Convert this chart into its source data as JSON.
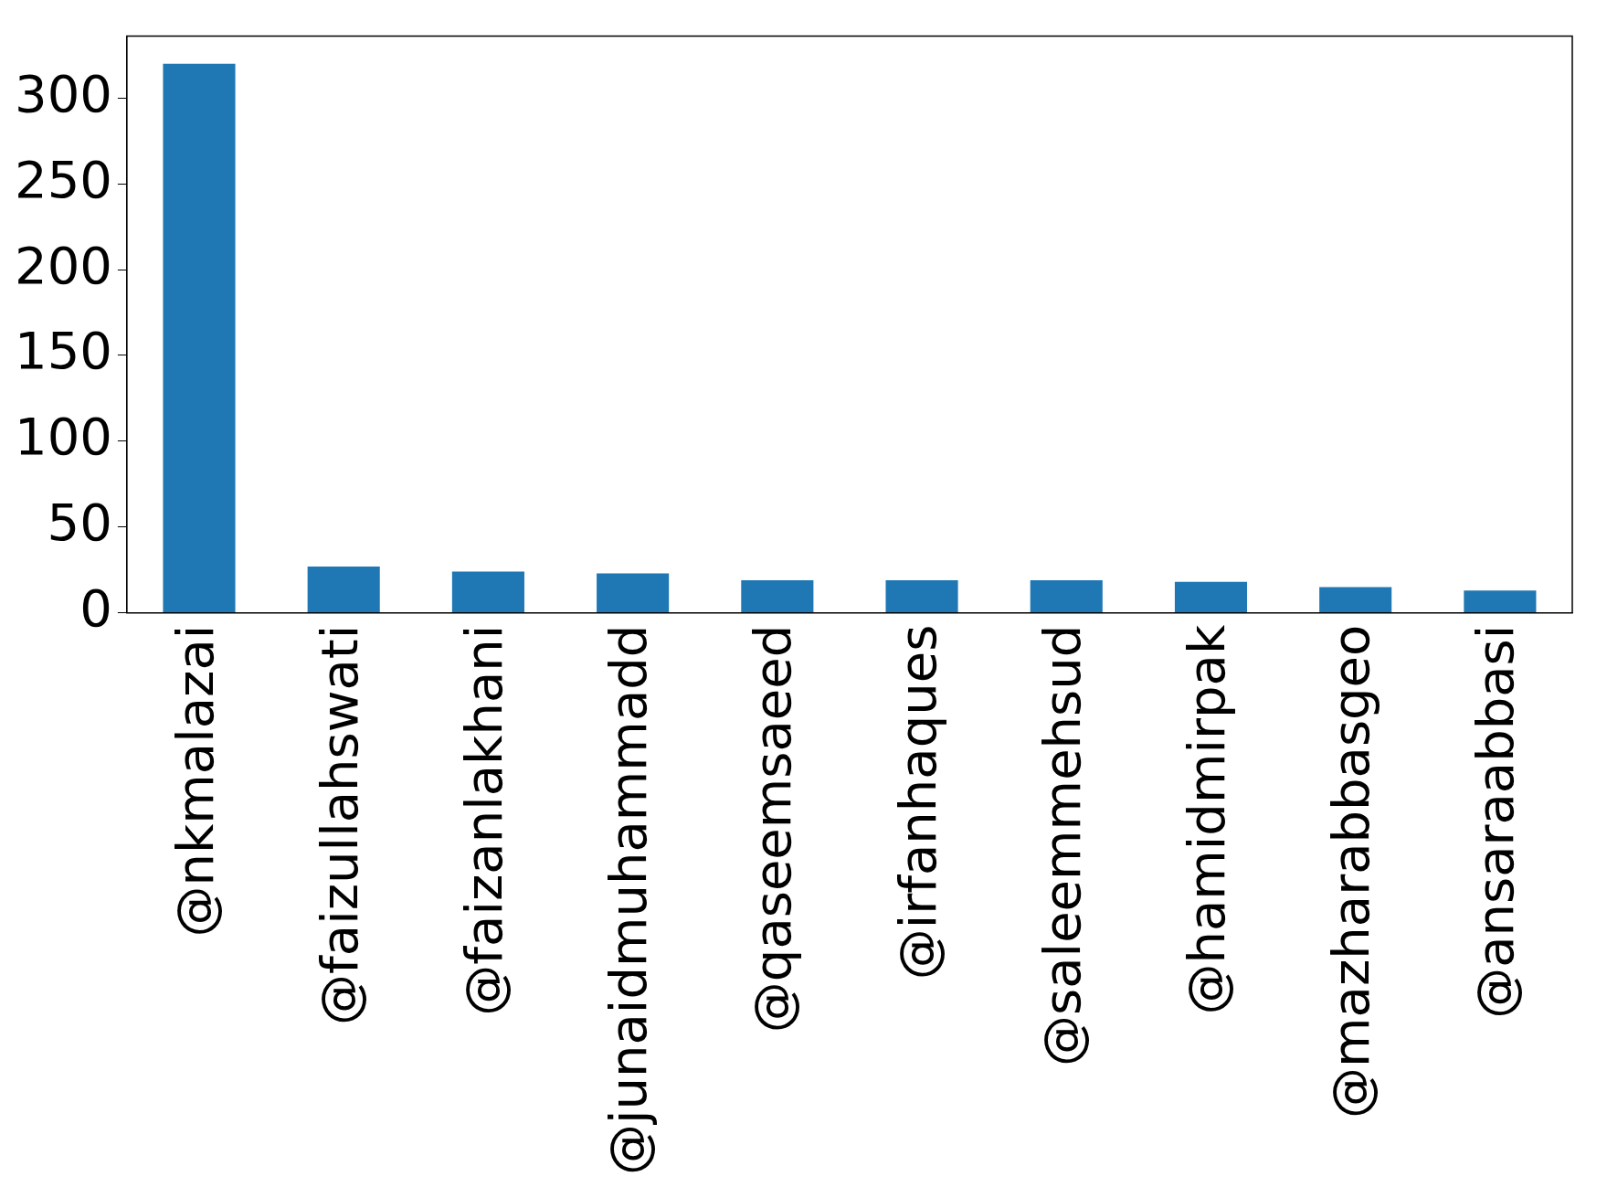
{
  "chart_data": {
    "type": "bar",
    "categories": [
      "@nkmalazai",
      "@faizullahswati",
      "@faizanlakhani",
      "@junaidmuhammadd",
      "@qaseemsaeed",
      "@irfanhaques",
      "@saleemmehsud",
      "@hamidmirpak",
      "@mazharabbasgeo",
      "@ansaraabbasi"
    ],
    "values": [
      320,
      27,
      24,
      23,
      19,
      19,
      19,
      18,
      15,
      13
    ],
    "color": "#1f77b4",
    "ylim": [
      0,
      336
    ],
    "yticks": [
      0,
      50,
      100,
      150,
      200,
      250,
      300
    ],
    "grid": false,
    "legend": false
  }
}
